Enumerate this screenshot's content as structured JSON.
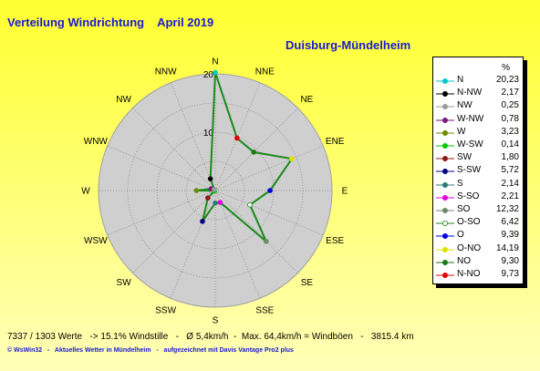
{
  "header": {
    "title": "Verteilung Windrichtung    April 2019",
    "station": "Duisburg-Mündelheim"
  },
  "chart_data": {
    "type": "radar",
    "directions": [
      "N",
      "NNE",
      "NE",
      "ENE",
      "E",
      "ESE",
      "SE",
      "SSE",
      "S",
      "SSW",
      "SW",
      "WSW",
      "W",
      "WNW",
      "NW",
      "NNW"
    ],
    "direction_labels": [
      "N",
      "NNE",
      "NE",
      "ENE",
      "E",
      "ESE",
      "SE",
      "SSE",
      "S",
      "SSW",
      "SW",
      "WSW",
      "W",
      "WNW",
      "NW",
      "NNW"
    ],
    "values": [
      20.23,
      9.73,
      9.3,
      14.19,
      9.39,
      6.42,
      12.32,
      2.21,
      2.14,
      5.72,
      1.8,
      0.14,
      3.23,
      0.78,
      0.25,
      2.17
    ],
    "rmax": 20,
    "scale_ticks": [
      "10",
      "20"
    ],
    "unit": "%",
    "line_color": "#1a8a1a",
    "grid_fill": "#cfcfcf"
  },
  "legend": {
    "unit": "%",
    "items": [
      {
        "label": "N",
        "value": "20,23",
        "color": "#00c8c8"
      },
      {
        "label": "N-NW",
        "value": "2,17",
        "color": "#000000"
      },
      {
        "label": "NW",
        "value": "0,25",
        "color": "#9a9a9a"
      },
      {
        "label": "W-NW",
        "value": "0,78",
        "color": "#7a1a7a"
      },
      {
        "label": "W",
        "value": "3,23",
        "color": "#6a8a00"
      },
      {
        "label": "W-SW",
        "value": "0,14",
        "color": "#00c800"
      },
      {
        "label": "SW",
        "value": "1,80",
        "color": "#8a1a1a"
      },
      {
        "label": "S-SW",
        "value": "5,72",
        "color": "#000080"
      },
      {
        "label": "S",
        "value": "2,14",
        "color": "#2a7a7a"
      },
      {
        "label": "S-SO",
        "value": "2,21",
        "color": "#e000e0"
      },
      {
        "label": "SO",
        "value": "12,32",
        "color": "#6a8a6a"
      },
      {
        "label": "O-SO",
        "value": "6,42",
        "color": "#ffffff"
      },
      {
        "label": "O",
        "value": "9,39",
        "color": "#0000e0"
      },
      {
        "label": "O-NO",
        "value": "14,19",
        "color": "#e0e000"
      },
      {
        "label": "NO",
        "value": "9,30",
        "color": "#1a7a1a"
      },
      {
        "label": "N-NO",
        "value": "9,73",
        "color": "#e00000"
      }
    ]
  },
  "stats": "7337 / 1303 Werte   -> 15.1% Windstille   -   Ø 5,4km/h  -  Max. 64,4km/h = Windböen   -   3815.4 km",
  "footer": "© WsWin32   -   Aktuelles Wetter in Mündelheim   -   aufgezeichnet mit Davis Vantage Pro2 plus"
}
